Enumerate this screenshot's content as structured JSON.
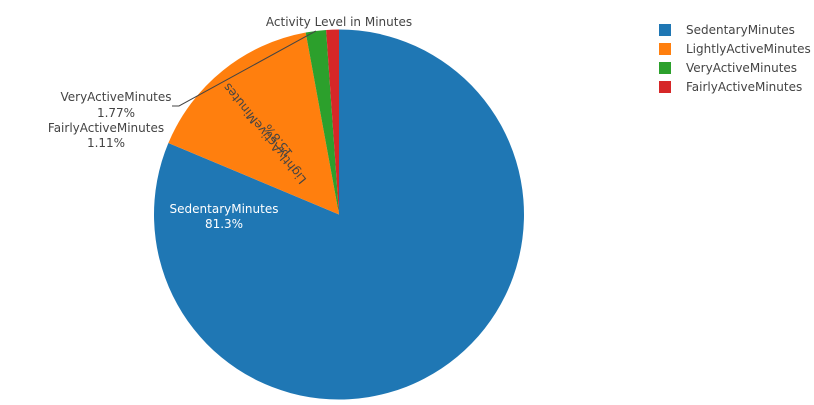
{
  "chart_data": {
    "type": "pie",
    "title": "Activity Level in Minutes",
    "slices": [
      {
        "name": "SedentaryMinutes",
        "percent_label": "81.3%",
        "value": 81.3,
        "color": "#1f77b4"
      },
      {
        "name": "LightlyActiveMinutes",
        "percent_label": "15.8%",
        "value": 15.8,
        "color": "#ff7f0e"
      },
      {
        "name": "VeryActiveMinutes",
        "percent_label": "1.77%",
        "value": 1.77,
        "color": "#2ca02c"
      },
      {
        "name": "FairlyActiveMinutes",
        "percent_label": "1.11%",
        "value": 1.11,
        "color": "#d62728"
      }
    ],
    "legend": {
      "placement": "top-right",
      "entries": [
        "SedentaryMinutes",
        "LightlyActiveMinutes",
        "VeryActiveMinutes",
        "FairlyActiveMinutes"
      ]
    }
  }
}
